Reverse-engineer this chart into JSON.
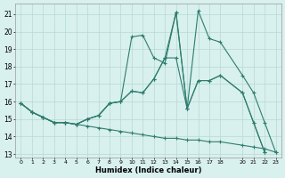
{
  "xlabel": "Humidex (Indice chaleur)",
  "bg_color": "#d8f0ee",
  "grid_color": "#b8d8d4",
  "line_color": "#2e7d6e",
  "xlim": [
    -0.5,
    23.5
  ],
  "ylim": [
    12.8,
    21.6
  ],
  "xticks": [
    0,
    1,
    2,
    3,
    4,
    5,
    6,
    7,
    8,
    9,
    10,
    11,
    12,
    13,
    14,
    15,
    16,
    17,
    18,
    20,
    21,
    22,
    23
  ],
  "yticks": [
    13,
    14,
    15,
    16,
    17,
    18,
    19,
    20,
    21
  ],
  "series": [
    {
      "x": [
        0,
        1,
        2,
        3,
        4,
        5,
        6,
        7,
        8,
        9,
        10,
        11,
        12,
        13,
        14,
        15,
        16,
        17,
        18,
        20,
        21,
        22,
        23
      ],
      "y": [
        15.9,
        15.4,
        15.1,
        14.8,
        14.8,
        14.7,
        15.0,
        15.2,
        15.9,
        16.0,
        19.7,
        19.8,
        18.5,
        18.2,
        21.1,
        15.6,
        21.2,
        19.6,
        19.4,
        17.5,
        16.5,
        14.8,
        13.1
      ]
    },
    {
      "x": [
        0,
        1,
        2,
        3,
        4,
        5,
        6,
        7,
        8,
        9,
        10,
        11,
        12,
        13,
        14,
        15,
        16,
        17,
        18,
        20,
        21,
        22,
        23
      ],
      "y": [
        15.9,
        15.4,
        15.1,
        14.8,
        14.8,
        14.7,
        15.0,
        15.2,
        15.9,
        16.0,
        16.6,
        16.5,
        17.3,
        18.5,
        21.1,
        15.6,
        17.2,
        17.2,
        17.5,
        16.5,
        14.8,
        13.1,
        null
      ]
    },
    {
      "x": [
        0,
        1,
        2,
        3,
        4,
        5,
        6,
        7,
        8,
        9,
        10,
        11,
        12,
        13,
        14,
        15,
        16,
        17,
        18,
        20,
        21,
        22,
        23
      ],
      "y": [
        15.9,
        15.4,
        15.1,
        14.8,
        14.8,
        14.7,
        15.0,
        15.2,
        15.9,
        16.0,
        16.6,
        16.5,
        17.3,
        18.5,
        18.5,
        15.6,
        17.2,
        17.2,
        17.5,
        16.5,
        14.8,
        13.1,
        null
      ]
    },
    {
      "x": [
        0,
        1,
        2,
        3,
        4,
        5,
        6,
        7,
        8,
        9,
        10,
        11,
        12,
        13,
        14,
        15,
        16,
        17,
        18,
        20,
        21,
        22,
        23
      ],
      "y": [
        15.9,
        15.4,
        15.1,
        14.8,
        14.8,
        14.7,
        14.6,
        14.5,
        14.4,
        14.3,
        14.2,
        14.1,
        14.0,
        13.9,
        13.9,
        13.8,
        13.8,
        13.7,
        13.7,
        13.5,
        13.4,
        13.3,
        13.1
      ]
    }
  ]
}
